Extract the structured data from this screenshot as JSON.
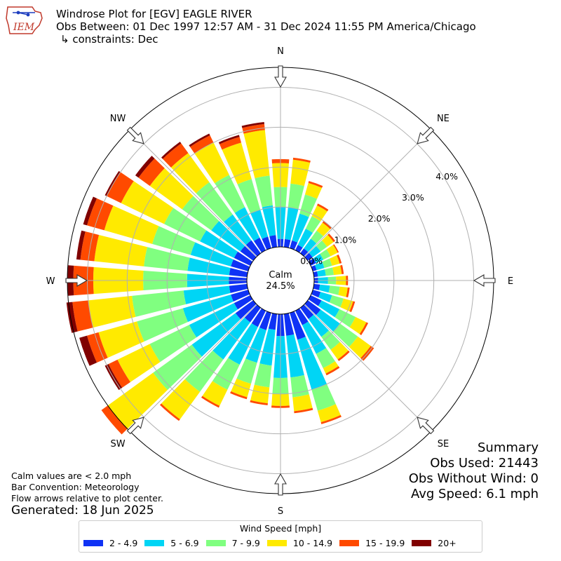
{
  "header": {
    "title": "Windrose Plot for [EGV] EAGLE RIVER",
    "obs_between": "Obs Between: 01 Dec 1997 12:57 AM - 31 Dec 2024 11:55 PM America/Chicago",
    "constraints": "↳ constraints: Dec",
    "logo_text": "IEM"
  },
  "notes": {
    "calm": "Calm values are < 2.0 mph",
    "bar_convention": "Bar Convention: Meteorology",
    "flow": "Flow arrows relative to plot center.",
    "generated": "Generated: 18 Jun 2025"
  },
  "summary": {
    "title": "Summary",
    "obs_used": "Obs Used: 21443",
    "obs_without_wind": "Obs Without Wind: 0",
    "avg_speed": "Avg Speed: 6.1 mph"
  },
  "chart_data": {
    "type": "windrose",
    "calm_label": "Calm",
    "calm_value": "24.5%",
    "direction_labels": [
      "N",
      "NE",
      "E",
      "SE",
      "S",
      "SW",
      "W",
      "NW"
    ],
    "radial_ticks": [
      "0.0%",
      "1.0%",
      "2.0%",
      "3.0%",
      "4.0%"
    ],
    "radial_max": 4.5,
    "legend_title": "Wind Speed [mph]",
    "bins": [
      {
        "label": "2 - 4.9",
        "color": "#0f32f5"
      },
      {
        "label": "5 - 6.9",
        "color": "#00d5f5"
      },
      {
        "label": "7 - 9.9",
        "color": "#80ff80"
      },
      {
        "label": "10 - 14.9",
        "color": "#ffea00"
      },
      {
        "label": "15 - 19.9",
        "color": "#ff4a00"
      },
      {
        "label": "20+",
        "color": "#800000"
      }
    ],
    "directions_deg": [
      0,
      10,
      20,
      30,
      40,
      50,
      60,
      70,
      80,
      90,
      100,
      110,
      120,
      130,
      140,
      150,
      160,
      170,
      180,
      190,
      200,
      210,
      220,
      230,
      240,
      250,
      260,
      270,
      280,
      290,
      300,
      310,
      320,
      330,
      340,
      350
    ],
    "cumulative_pct": [
      [
        0.2,
        1.0,
        1.5,
        2.1,
        2.2,
        2.2
      ],
      [
        0.2,
        1.0,
        1.6,
        2.2,
        2.25,
        2.25
      ],
      [
        0.2,
        0.9,
        1.4,
        1.7,
        1.75,
        1.75
      ],
      [
        0.15,
        0.6,
        0.95,
        1.25,
        1.3,
        1.3
      ],
      [
        0.15,
        0.45,
        0.7,
        0.95,
        1.0,
        1.0
      ],
      [
        0.15,
        0.4,
        0.6,
        0.8,
        0.85,
        0.85
      ],
      [
        0.15,
        0.35,
        0.55,
        0.75,
        0.78,
        0.78
      ],
      [
        0.1,
        0.3,
        0.5,
        0.7,
        0.75,
        0.75
      ],
      [
        0.1,
        0.3,
        0.5,
        0.7,
        0.75,
        0.75
      ],
      [
        0.1,
        0.35,
        0.55,
        0.8,
        0.85,
        0.85
      ],
      [
        0.15,
        0.4,
        0.65,
        0.85,
        0.9,
        0.9
      ],
      [
        0.2,
        0.5,
        0.8,
        1.05,
        1.1,
        1.1
      ],
      [
        0.3,
        0.8,
        1.25,
        1.55,
        1.6,
        1.6
      ],
      [
        0.4,
        1.0,
        1.55,
        1.95,
        2.05,
        2.05
      ],
      [
        0.35,
        0.9,
        1.3,
        1.6,
        1.65,
        1.65
      ],
      [
        0.4,
        1.2,
        1.6,
        1.75,
        1.8,
        1.8
      ],
      [
        0.7,
        2.0,
        2.55,
        2.85,
        2.9,
        2.9
      ],
      [
        0.55,
        1.6,
        2.1,
        2.45,
        2.5,
        2.5
      ],
      [
        0.55,
        1.6,
        2.0,
        2.3,
        2.35,
        2.35
      ],
      [
        0.4,
        1.3,
        1.85,
        2.25,
        2.3,
        2.3
      ],
      [
        0.45,
        1.3,
        1.85,
        2.2,
        2.25,
        2.25
      ],
      [
        0.45,
        1.5,
        2.2,
        2.65,
        2.7,
        2.7
      ],
      [
        0.45,
        1.6,
        2.6,
        3.45,
        3.5,
        3.5
      ],
      [
        0.55,
        1.9,
        3.1,
        4.5,
        4.7,
        4.7
      ],
      [
        0.45,
        1.7,
        2.8,
        3.7,
        3.95,
        4.05
      ],
      [
        0.45,
        1.7,
        2.9,
        3.9,
        4.2,
        4.4
      ],
      [
        0.45,
        1.6,
        2.9,
        4.0,
        4.4,
        4.55
      ],
      [
        0.45,
        1.5,
        2.6,
        3.85,
        4.35,
        4.5
      ],
      [
        0.45,
        1.5,
        2.6,
        3.85,
        4.2,
        4.3
      ],
      [
        0.45,
        1.5,
        2.5,
        3.75,
        4.2,
        4.3
      ],
      [
        0.45,
        1.4,
        2.4,
        3.6,
        4.0,
        4.05
      ],
      [
        0.4,
        1.3,
        2.2,
        3.2,
        3.55,
        3.65
      ],
      [
        0.4,
        1.2,
        2.2,
        3.1,
        3.4,
        3.45
      ],
      [
        0.35,
        1.2,
        2.1,
        3.0,
        3.2,
        3.25
      ],
      [
        0.3,
        1.0,
        1.8,
        2.75,
        2.9,
        2.95
      ],
      [
        0.3,
        1.05,
        1.8,
        2.95,
        3.1,
        3.15
      ]
    ]
  }
}
